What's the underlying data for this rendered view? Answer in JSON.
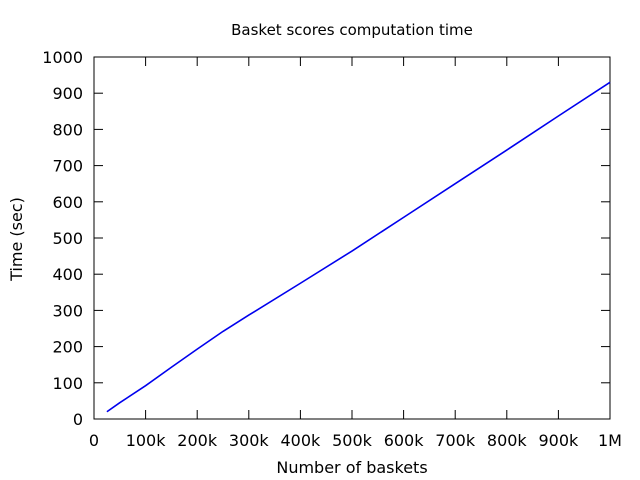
{
  "chart_data": {
    "type": "line",
    "title": "Basket scores computation time",
    "xlabel": "Number of baskets",
    "ylabel": "Time (sec)",
    "xlim": [
      0,
      1000000
    ],
    "ylim": [
      0,
      1000
    ],
    "x_ticks": [
      {
        "value": 0,
        "label": "0"
      },
      {
        "value": 100000,
        "label": "100k"
      },
      {
        "value": 200000,
        "label": "200k"
      },
      {
        "value": 300000,
        "label": "300k"
      },
      {
        "value": 400000,
        "label": "400k"
      },
      {
        "value": 500000,
        "label": "500k"
      },
      {
        "value": 600000,
        "label": "600k"
      },
      {
        "value": 700000,
        "label": "700k"
      },
      {
        "value": 800000,
        "label": "800k"
      },
      {
        "value": 900000,
        "label": "900k"
      },
      {
        "value": 1000000,
        "label": "1M"
      }
    ],
    "y_ticks": [
      {
        "value": 0,
        "label": "0"
      },
      {
        "value": 100,
        "label": "100"
      },
      {
        "value": 200,
        "label": "200"
      },
      {
        "value": 300,
        "label": "300"
      },
      {
        "value": 400,
        "label": "400"
      },
      {
        "value": 500,
        "label": "500"
      },
      {
        "value": 600,
        "label": "600"
      },
      {
        "value": 700,
        "label": "700"
      },
      {
        "value": 800,
        "label": "800"
      },
      {
        "value": 900,
        "label": "900"
      },
      {
        "value": 1000,
        "label": "1000"
      }
    ],
    "grid": false,
    "legend": "none",
    "series": [
      {
        "color": "#0000ee",
        "x": [
          25000,
          50000,
          100000,
          150000,
          200000,
          250000,
          300000,
          400000,
          500000,
          600000,
          700000,
          800000,
          900000,
          1000000
        ],
        "y": [
          20,
          45,
          92,
          143,
          193,
          242,
          287,
          375,
          464,
          557,
          650,
          743,
          837,
          930
        ]
      }
    ]
  }
}
